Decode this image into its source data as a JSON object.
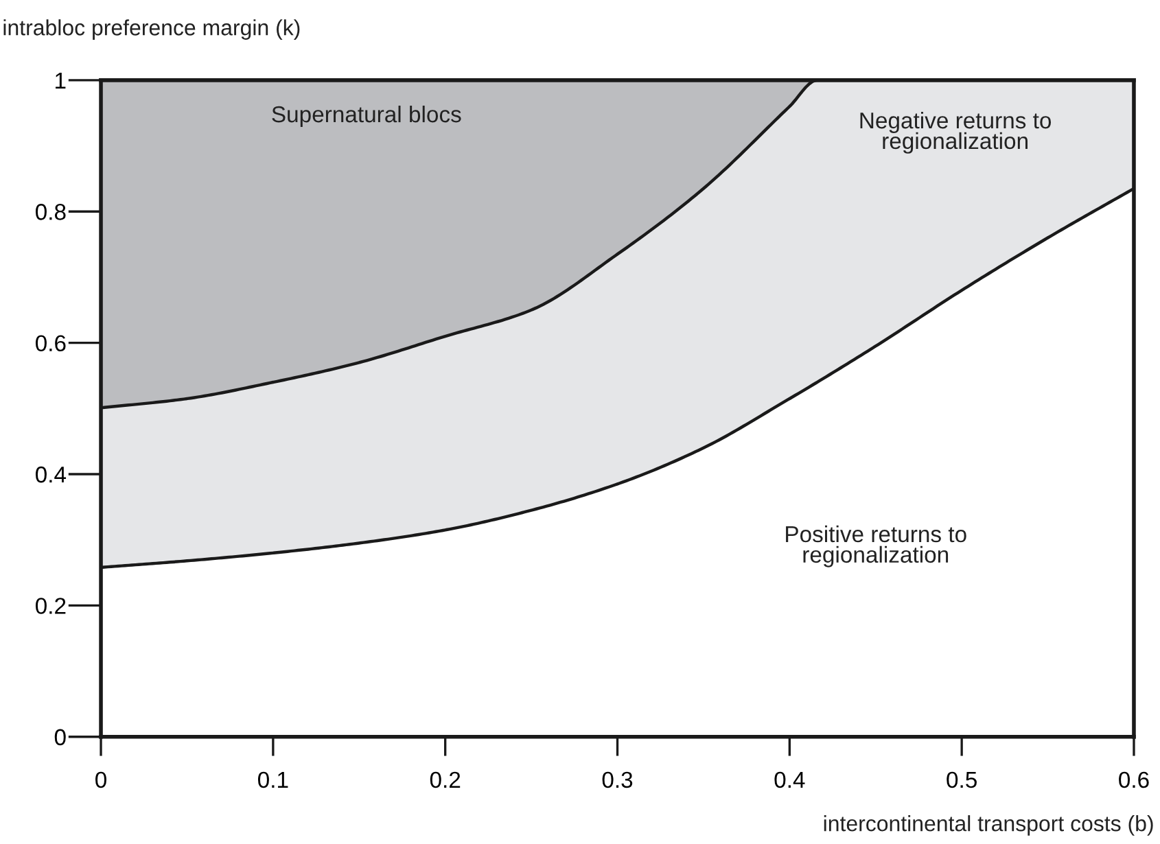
{
  "chart_data": {
    "type": "area",
    "stacked": true,
    "xlabel": "intercontinental transport costs (b)",
    "ylabel": "intrabloc preference margin (k)",
    "x": [
      0,
      0.05,
      0.1,
      0.15,
      0.2,
      0.25,
      0.3,
      0.35,
      0.4,
      0.416,
      0.45,
      0.5,
      0.55,
      0.6
    ],
    "series": [
      {
        "color": "#ffffff",
        "values": [
          0.258,
          0.268,
          0.28,
          0.295,
          0.315,
          0.345,
          0.385,
          0.44,
          0.515,
          0.54,
          0.595,
          0.68,
          0.76,
          0.835
        ]
      },
      {
        "color": "#e5e6e8",
        "values": [
          0.243,
          0.247,
          0.26,
          0.275,
          0.295,
          0.305,
          0.35,
          0.395,
          0.445,
          0.46,
          0.405,
          0.32,
          0.24,
          0.165
        ]
      },
      {
        "color": "#bcbdc0",
        "values": [
          0.499,
          0.485,
          0.46,
          0.43,
          0.39,
          0.35,
          0.265,
          0.165,
          0.04,
          0,
          0,
          0,
          0,
          0
        ]
      }
    ],
    "xlim": [
      0,
      0.6
    ],
    "ylim": [
      0,
      1
    ],
    "xticks": [
      0,
      0.1,
      0.2,
      0.3,
      0.4,
      0.5,
      0.6
    ],
    "yticks": [
      0,
      0.2,
      0.4,
      0.6,
      0.8,
      1
    ],
    "grid": false,
    "legend": false,
    "annotations": [
      "Supernatural blocs",
      "Negative returns to\nregionalization",
      "Positive returns to\nregionalization"
    ]
  }
}
